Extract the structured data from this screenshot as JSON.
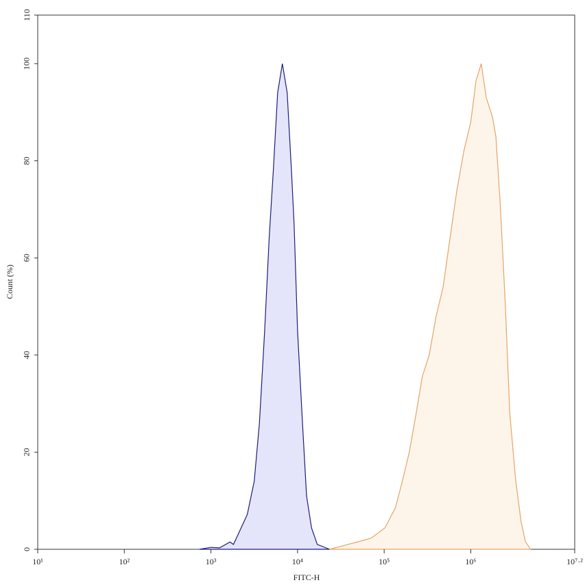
{
  "chart_data": {
    "type": "area",
    "x_label": "FITC-H",
    "y_label": "Count (%)",
    "xscale": "log",
    "xlim": [
      10,
      15848932
    ],
    "xticks": [
      {
        "value": 10,
        "label": "10¹"
      },
      {
        "value": 100,
        "label": "10²"
      },
      {
        "value": 1000,
        "label": "10³"
      },
      {
        "value": 10000,
        "label": "10⁴"
      },
      {
        "value": 100000,
        "label": "10⁵"
      },
      {
        "value": 1000000,
        "label": "10⁶"
      },
      {
        "value": 15848932,
        "label": "10⁷·²"
      }
    ],
    "ylim": [
      0,
      110
    ],
    "yticks": [
      0,
      20,
      40,
      60,
      80,
      100,
      110
    ],
    "series": [
      {
        "color": "#1c1c7c",
        "fill_color": "#e4e5fa",
        "x": [
          741,
          1000,
          1260,
          1660,
          1820,
          2140,
          2630,
          3160,
          3630,
          4170,
          4700,
          5250,
          5890,
          6680,
          7590,
          8500,
          9120,
          10000,
          11400,
          12700,
          14500,
          16900,
          23400
        ],
        "y": [
          0,
          0.4,
          0.3,
          1.5,
          1,
          3.7,
          7.2,
          14,
          26,
          45,
          64,
          78,
          94,
          100,
          94,
          78,
          67,
          45,
          26,
          11,
          4.4,
          1,
          0
        ]
      },
      {
        "color": "#e3a467",
        "fill_color": "#fef5ea",
        "x": [
          23400,
          49000,
          70800,
          102000,
          135000,
          162000,
          195000,
          234000,
          275000,
          331000,
          398000,
          479000,
          575000,
          692000,
          832000,
          1000000,
          1150000,
          1320000,
          1510000,
          1780000,
          1950000,
          2190000,
          2510000,
          2820000,
          3310000,
          3800000,
          4270000,
          4900000
        ],
        "y": [
          0,
          1.5,
          2.3,
          4.4,
          8.6,
          14,
          20,
          28,
          35.5,
          40,
          48,
          54,
          64,
          74,
          82,
          88,
          96.5,
          100,
          93,
          89,
          85,
          71,
          50,
          28,
          14,
          5.8,
          1.6,
          0
        ]
      }
    ]
  }
}
